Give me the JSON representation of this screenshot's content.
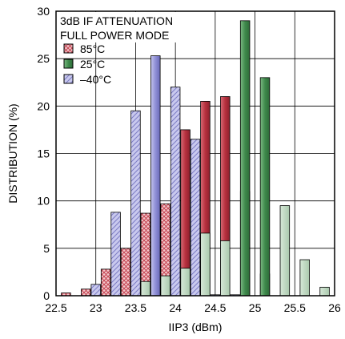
{
  "chart_data": {
    "type": "bar",
    "xlabel": "IIP3 (dBm)",
    "ylabel": "DISTRIBUTION (%)",
    "xlim": [
      22.5,
      26
    ],
    "ylim": [
      0,
      30
    ],
    "x_ticks": [
      "22.5",
      "23",
      "23.5",
      "24",
      "24.5",
      "25",
      "25.5",
      "26"
    ],
    "y_ticks": [
      "0",
      "5",
      "10",
      "15",
      "20",
      "25",
      "30"
    ],
    "grid": true,
    "annotations": [
      "3dB IF ATTENUATION",
      "FULL POWER MODE"
    ],
    "legend_position": "top-left",
    "bin_width": 0.125,
    "series": [
      {
        "name": "85°C",
        "color": "#c8424f",
        "pattern": "crosshatch",
        "x": [
          22.625,
          22.875,
          23.125,
          23.375,
          23.625,
          23.875,
          24.125,
          24.375,
          24.625,
          24.875,
          25.125
        ],
        "values": [
          0.3,
          0.7,
          2.8,
          5.0,
          8.7,
          9.7,
          17.5,
          20.5,
          21.0,
          11.0,
          2.3
        ]
      },
      {
        "name": "25°C",
        "color": "#4f8f5a",
        "pattern": "solid",
        "x": [
          23.625,
          23.875,
          24.125,
          24.375,
          24.625,
          24.875,
          25.125,
          25.375,
          25.625,
          25.875
        ],
        "values": [
          1.5,
          2.1,
          2.9,
          6.6,
          5.8,
          29.0,
          23.0,
          9.5,
          3.8,
          0.9
        ]
      },
      {
        "name": "–40°C",
        "color": "#8f8fd0",
        "pattern": "hatch",
        "x": [
          23.0,
          23.25,
          23.5,
          23.75,
          24.0,
          24.25,
          24.5,
          24.75
        ],
        "values": [
          1.2,
          8.8,
          19.5,
          25.3,
          22.0,
          16.5,
          0.1,
          0.1
        ]
      }
    ]
  }
}
